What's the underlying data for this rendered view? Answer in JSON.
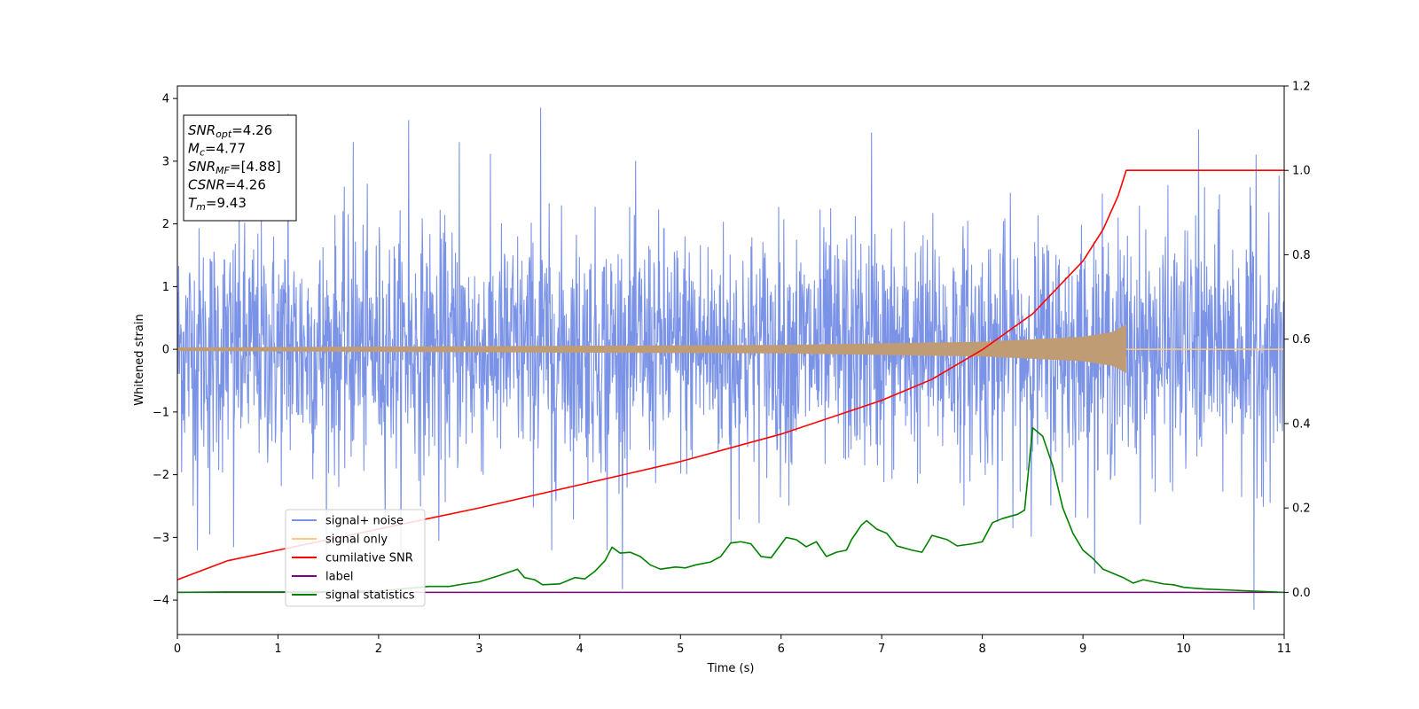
{
  "chart_data": {
    "type": "line",
    "title": "",
    "xlabel": "Time (s)",
    "ylabel": "Whitened strain",
    "y2label": "",
    "xlim": [
      0,
      11
    ],
    "ylim": [
      -4.55,
      4.2
    ],
    "y2lim": [
      -0.1,
      1.2
    ],
    "xticks": [
      "0",
      "1",
      "2",
      "3",
      "4",
      "5",
      "6",
      "7",
      "8",
      "9",
      "10",
      "11"
    ],
    "yticks": [
      "−4",
      "−3",
      "−2",
      "−1",
      "0",
      "1",
      "2",
      "3",
      "4"
    ],
    "y2ticks": [
      "0.0",
      "0.2",
      "0.4",
      "0.6",
      "0.8",
      "1.0",
      "1.2"
    ],
    "grid": false,
    "legend_position": "lower-left",
    "info_box": {
      "lines": [
        {
          "base": "SNR",
          "sub": "opt",
          "rest": "=4.26"
        },
        {
          "base": "M",
          "sub": "c",
          "rest": "=4.77"
        },
        {
          "base": "SNR",
          "sub": "MF",
          "rest": "=[4.88]"
        },
        {
          "base": "CSNR",
          "sub": "",
          "rest": "=4.26"
        },
        {
          "base": "T",
          "sub": "m",
          "rest": "=9.43"
        }
      ]
    },
    "series": [
      {
        "name": "signal+ noise",
        "axis": "left",
        "color": "#7b93e6",
        "description_values": {
          "noise_sigma": 1.0,
          "duration": 11
        },
        "spikes": [
          {
            "x": 0.2,
            "y": -3.2
          },
          {
            "x": 0.32,
            "y": -2.95
          },
          {
            "x": 0.56,
            "y": -3.15
          },
          {
            "x": 1.1,
            "y": 3.75
          },
          {
            "x": 1.75,
            "y": 3.3
          },
          {
            "x": 2.3,
            "y": 3.65
          },
          {
            "x": 2.6,
            "y": -3.05
          },
          {
            "x": 2.8,
            "y": 3.3
          },
          {
            "x": 3.61,
            "y": 3.85
          },
          {
            "x": 3.72,
            "y": -3.2
          },
          {
            "x": 4.27,
            "y": -3.2
          },
          {
            "x": 5.5,
            "y": -3.1
          },
          {
            "x": 6.9,
            "y": 3.45
          },
          {
            "x": 8.15,
            "y": -2.75
          },
          {
            "x": 10.15,
            "y": 3.5
          },
          {
            "x": 10.7,
            "y": -4.15
          },
          {
            "x": 10.72,
            "y": 3.1
          }
        ]
      },
      {
        "name": "signal only",
        "axis": "left",
        "color": "#ffc97a",
        "t_merger": 9.43,
        "amplitude_envelope": [
          {
            "x": 0,
            "y": 0.03
          },
          {
            "x": 3,
            "y": 0.05
          },
          {
            "x": 6,
            "y": 0.07
          },
          {
            "x": 8,
            "y": 0.12
          },
          {
            "x": 9,
            "y": 0.2
          },
          {
            "x": 9.3,
            "y": 0.28
          },
          {
            "x": 9.43,
            "y": 0.4
          }
        ]
      },
      {
        "name": "cumilative SNR",
        "axis": "right",
        "color": "#ff0000",
        "points": [
          {
            "x": 0,
            "y": 0.03
          },
          {
            "x": 0.5,
            "y": 0.075
          },
          {
            "x": 1,
            "y": 0.1
          },
          {
            "x": 2,
            "y": 0.15
          },
          {
            "x": 3,
            "y": 0.2
          },
          {
            "x": 4,
            "y": 0.255
          },
          {
            "x": 5,
            "y": 0.31
          },
          {
            "x": 6,
            "y": 0.375
          },
          {
            "x": 7,
            "y": 0.455
          },
          {
            "x": 7.5,
            "y": 0.505
          },
          {
            "x": 8,
            "y": 0.575
          },
          {
            "x": 8.5,
            "y": 0.66
          },
          {
            "x": 9,
            "y": 0.785
          },
          {
            "x": 9.2,
            "y": 0.86
          },
          {
            "x": 9.35,
            "y": 0.94
          },
          {
            "x": 9.43,
            "y": 1.0
          },
          {
            "x": 11,
            "y": 1.0
          }
        ]
      },
      {
        "name": "label",
        "axis": "right",
        "color": "#800080",
        "points": [
          {
            "x": 0,
            "y": 0.0
          },
          {
            "x": 11,
            "y": 0.0
          }
        ]
      },
      {
        "name": "signal statistics",
        "axis": "right",
        "color": "#008000",
        "points": [
          {
            "x": 0,
            "y": 0.0
          },
          {
            "x": 0.5,
            "y": 0.001
          },
          {
            "x": 1,
            "y": 0.001
          },
          {
            "x": 1.5,
            "y": 0.002
          },
          {
            "x": 2,
            "y": 0.003
          },
          {
            "x": 2.5,
            "y": 0.014
          },
          {
            "x": 2.7,
            "y": 0.014
          },
          {
            "x": 2.85,
            "y": 0.02
          },
          {
            "x": 3.0,
            "y": 0.025
          },
          {
            "x": 3.2,
            "y": 0.04
          },
          {
            "x": 3.38,
            "y": 0.055
          },
          {
            "x": 3.45,
            "y": 0.035
          },
          {
            "x": 3.55,
            "y": 0.03
          },
          {
            "x": 3.63,
            "y": 0.018
          },
          {
            "x": 3.8,
            "y": 0.02
          },
          {
            "x": 3.95,
            "y": 0.035
          },
          {
            "x": 4.05,
            "y": 0.032
          },
          {
            "x": 4.15,
            "y": 0.05
          },
          {
            "x": 4.25,
            "y": 0.075
          },
          {
            "x": 4.32,
            "y": 0.107
          },
          {
            "x": 4.4,
            "y": 0.093
          },
          {
            "x": 4.5,
            "y": 0.095
          },
          {
            "x": 4.6,
            "y": 0.085
          },
          {
            "x": 4.7,
            "y": 0.065
          },
          {
            "x": 4.8,
            "y": 0.055
          },
          {
            "x": 4.95,
            "y": 0.06
          },
          {
            "x": 5.05,
            "y": 0.058
          },
          {
            "x": 5.15,
            "y": 0.065
          },
          {
            "x": 5.3,
            "y": 0.072
          },
          {
            "x": 5.4,
            "y": 0.085
          },
          {
            "x": 5.5,
            "y": 0.117
          },
          {
            "x": 5.6,
            "y": 0.12
          },
          {
            "x": 5.7,
            "y": 0.115
          },
          {
            "x": 5.8,
            "y": 0.085
          },
          {
            "x": 5.9,
            "y": 0.082
          },
          {
            "x": 6.05,
            "y": 0.13
          },
          {
            "x": 6.15,
            "y": 0.125
          },
          {
            "x": 6.25,
            "y": 0.108
          },
          {
            "x": 6.35,
            "y": 0.12
          },
          {
            "x": 6.45,
            "y": 0.085
          },
          {
            "x": 6.55,
            "y": 0.095
          },
          {
            "x": 6.65,
            "y": 0.1
          },
          {
            "x": 6.7,
            "y": 0.125
          },
          {
            "x": 6.8,
            "y": 0.16
          },
          {
            "x": 6.85,
            "y": 0.17
          },
          {
            "x": 6.95,
            "y": 0.15
          },
          {
            "x": 7.05,
            "y": 0.14
          },
          {
            "x": 7.15,
            "y": 0.11
          },
          {
            "x": 7.3,
            "y": 0.1
          },
          {
            "x": 7.4,
            "y": 0.095
          },
          {
            "x": 7.5,
            "y": 0.135
          },
          {
            "x": 7.65,
            "y": 0.125
          },
          {
            "x": 7.75,
            "y": 0.11
          },
          {
            "x": 7.9,
            "y": 0.115
          },
          {
            "x": 8.0,
            "y": 0.12
          },
          {
            "x": 8.1,
            "y": 0.165
          },
          {
            "x": 8.2,
            "y": 0.175
          },
          {
            "x": 8.35,
            "y": 0.185
          },
          {
            "x": 8.42,
            "y": 0.195
          },
          {
            "x": 8.5,
            "y": 0.39
          },
          {
            "x": 8.6,
            "y": 0.37
          },
          {
            "x": 8.7,
            "y": 0.3
          },
          {
            "x": 8.8,
            "y": 0.2
          },
          {
            "x": 8.9,
            "y": 0.14
          },
          {
            "x": 9.0,
            "y": 0.1
          },
          {
            "x": 9.1,
            "y": 0.08
          },
          {
            "x": 9.2,
            "y": 0.055
          },
          {
            "x": 9.3,
            "y": 0.045
          },
          {
            "x": 9.4,
            "y": 0.035
          },
          {
            "x": 9.5,
            "y": 0.022
          },
          {
            "x": 9.6,
            "y": 0.03
          },
          {
            "x": 9.7,
            "y": 0.025
          },
          {
            "x": 9.8,
            "y": 0.02
          },
          {
            "x": 9.9,
            "y": 0.018
          },
          {
            "x": 10.0,
            "y": 0.012
          },
          {
            "x": 10.2,
            "y": 0.008
          },
          {
            "x": 10.5,
            "y": 0.005
          },
          {
            "x": 11,
            "y": 0.0
          }
        ]
      }
    ]
  }
}
